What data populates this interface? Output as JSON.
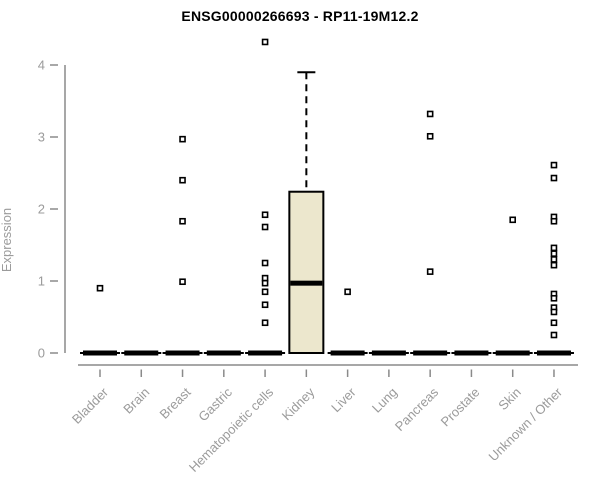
{
  "colors": {
    "background": "#ffffff",
    "box_fill": "#ece7cd",
    "box_stroke": "#000000",
    "axis": "#8a8a8a",
    "label": "#9b9b9b",
    "title": "#000000",
    "outlier_fill": "#ffffff"
  },
  "chart_data": {
    "type": "boxplot",
    "title": "ENSG00000266693 - RP11-19M12.2",
    "ylabel": "Expression",
    "xlabel": "",
    "ylim": [
      0,
      4.4
    ],
    "yticks": [
      0,
      1,
      2,
      3,
      4
    ],
    "grid": false,
    "legend": "none",
    "categories": [
      "Bladder",
      "Brain",
      "Breast",
      "Gastric",
      "Hematopoietic cells",
      "Kidney",
      "Liver",
      "Lung",
      "Pancreas",
      "Prostate",
      "Skin",
      "Unknown / Other"
    ],
    "boxes": [
      {
        "category": "Bladder",
        "q1": 0,
        "median": 0,
        "q3": 0,
        "whisker_low": 0,
        "whisker_high": 0,
        "outliers": [
          0.9
        ]
      },
      {
        "category": "Brain",
        "q1": 0,
        "median": 0,
        "q3": 0,
        "whisker_low": 0,
        "whisker_high": 0,
        "outliers": []
      },
      {
        "category": "Breast",
        "q1": 0,
        "median": 0,
        "q3": 0,
        "whisker_low": 0,
        "whisker_high": 0,
        "outliers": [
          2.97,
          2.4,
          1.83,
          0.99
        ]
      },
      {
        "category": "Gastric",
        "q1": 0,
        "median": 0,
        "q3": 0,
        "whisker_low": 0,
        "whisker_high": 0,
        "outliers": []
      },
      {
        "category": "Hematopoietic cells",
        "q1": 0,
        "median": 0,
        "q3": 0,
        "whisker_low": 0,
        "whisker_high": 0,
        "outliers": [
          4.32,
          1.92,
          1.75,
          1.25,
          1.04,
          0.97,
          0.85,
          0.67,
          0.42
        ]
      },
      {
        "category": "Kidney",
        "q1": 0,
        "median": 0.97,
        "q3": 2.24,
        "whisker_low": 0,
        "whisker_high": 3.9,
        "outliers": []
      },
      {
        "category": "Liver",
        "q1": 0,
        "median": 0,
        "q3": 0,
        "whisker_low": 0,
        "whisker_high": 0,
        "outliers": [
          0.85
        ]
      },
      {
        "category": "Lung",
        "q1": 0,
        "median": 0,
        "q3": 0,
        "whisker_low": 0,
        "whisker_high": 0,
        "outliers": []
      },
      {
        "category": "Pancreas",
        "q1": 0,
        "median": 0,
        "q3": 0,
        "whisker_low": 0,
        "whisker_high": 0,
        "outliers": [
          3.32,
          3.01,
          1.13
        ]
      },
      {
        "category": "Prostate",
        "q1": 0,
        "median": 0,
        "q3": 0,
        "whisker_low": 0,
        "whisker_high": 0,
        "outliers": []
      },
      {
        "category": "Skin",
        "q1": 0,
        "median": 0,
        "q3": 0,
        "whisker_low": 0,
        "whisker_high": 0,
        "outliers": [
          1.85
        ]
      },
      {
        "category": "Unknown / Other",
        "q1": 0,
        "median": 0,
        "q3": 0,
        "whisker_low": 0,
        "whisker_high": 0,
        "outliers": [
          2.61,
          2.43,
          1.89,
          1.83,
          1.46,
          1.38,
          1.3,
          1.22,
          0.82,
          0.76,
          0.63,
          0.57,
          0.42,
          0.25
        ]
      }
    ]
  }
}
